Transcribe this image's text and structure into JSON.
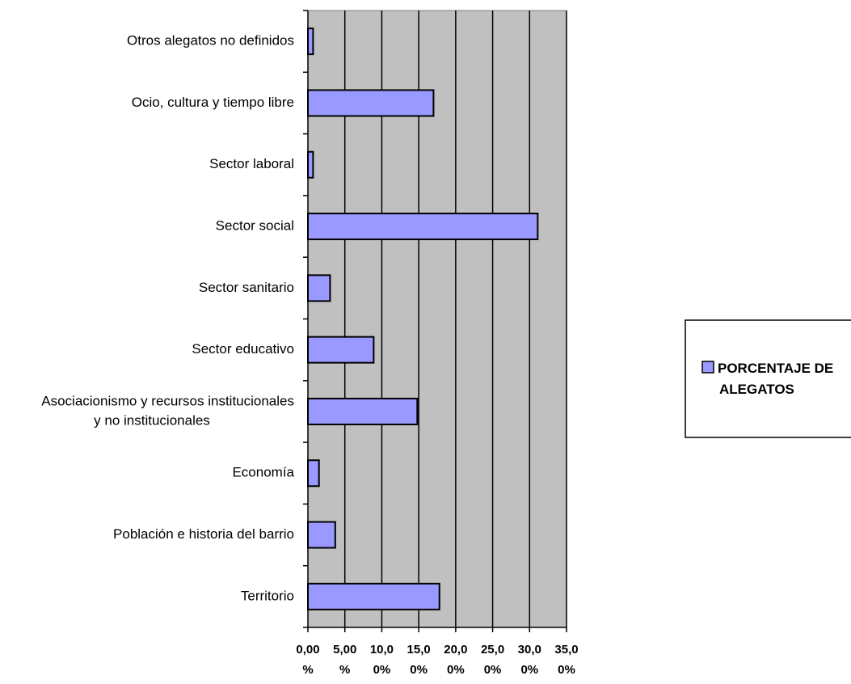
{
  "chart_data": {
    "type": "bar",
    "orientation": "horizontal",
    "categories": [
      "Territorio",
      "Población e historia del barrio",
      "Economía",
      "Asociacionismo y recursos institucionales y no institucionales",
      "Sector educativo",
      "Sector sanitario",
      "Sector social",
      "Sector laboral",
      "Ocio, cultura y tiempo libre",
      "Otros alegatos no definidos"
    ],
    "category_label_lines": [
      [
        "Territorio"
      ],
      [
        "Población e historia del barrio"
      ],
      [
        "Economía"
      ],
      [
        "Asociacionismo y recursos institucionales",
        "y no institucionales"
      ],
      [
        "Sector educativo"
      ],
      [
        "Sector sanitario"
      ],
      [
        "Sector social"
      ],
      [
        "Sector laboral"
      ],
      [
        "Ocio, cultura y tiempo libre"
      ],
      [
        "Otros alegatos no definidos"
      ]
    ],
    "series": [
      {
        "name": "PORCENTAJE DE ALEGATOS",
        "values": [
          17.8,
          3.7,
          1.5,
          14.8,
          8.9,
          3.0,
          31.1,
          0.7,
          17.0,
          0.7
        ]
      }
    ],
    "xlim": [
      0,
      35
    ],
    "xticks": [
      0,
      5,
      10,
      15,
      20,
      25,
      30,
      35
    ],
    "xtick_labels": [
      [
        "0,00",
        "%"
      ],
      [
        "5,00",
        "%"
      ],
      [
        "10,0",
        "0%"
      ],
      [
        "15,0",
        "0%"
      ],
      [
        "20,0",
        "0%"
      ],
      [
        "25,0",
        "0%"
      ],
      [
        "30,0",
        "0%"
      ],
      [
        "35,0",
        "0%"
      ]
    ],
    "legend": {
      "position": "right",
      "lines": [
        "PORCENTAJE DE",
        "ALEGATOS"
      ]
    },
    "grid": true,
    "colors": {
      "plot_background": "#c0c0c0",
      "bar_fill": "#9999ff",
      "bar_stroke": "#000000",
      "grid": "#000000"
    }
  }
}
